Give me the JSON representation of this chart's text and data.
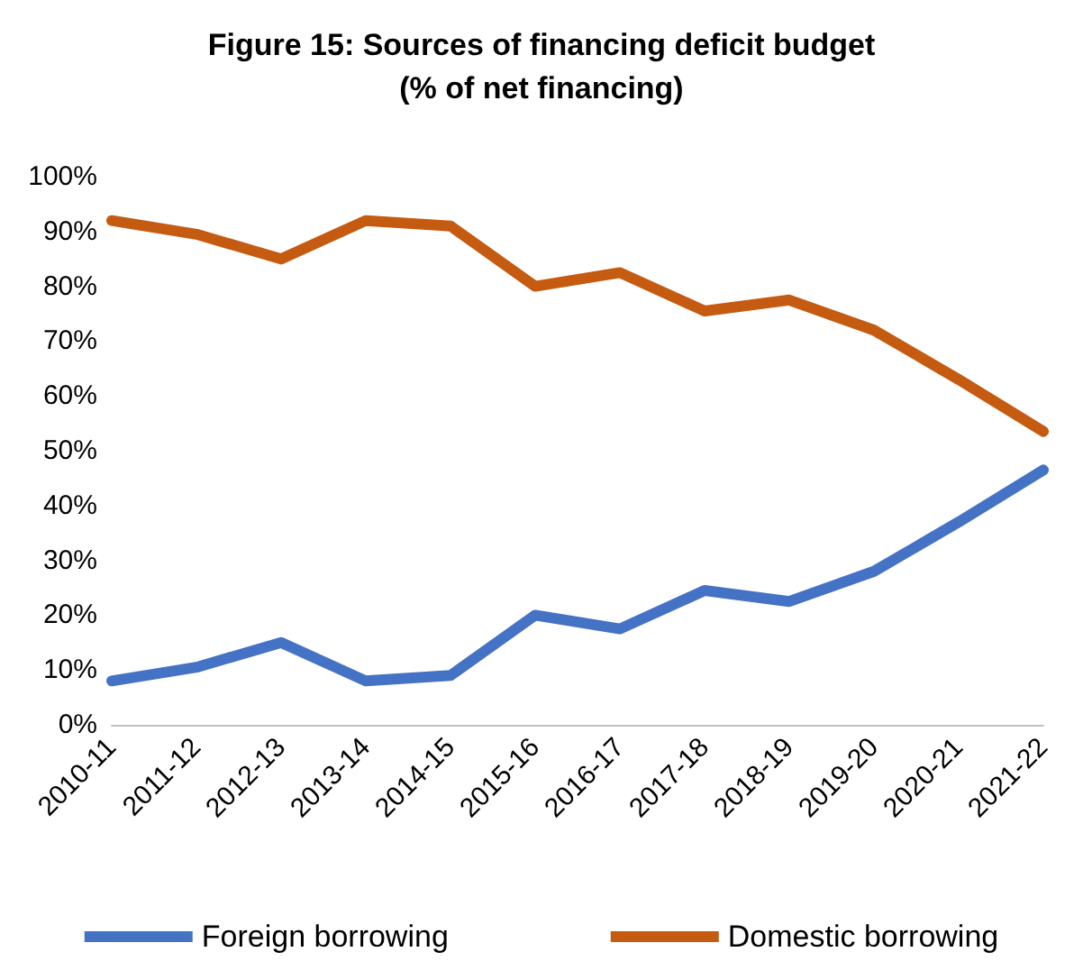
{
  "chart_data": {
    "type": "line",
    "title": "Figure 15: Sources of financing deficit budget\n(% of net financing)",
    "categories": [
      "2010-11",
      "2011-12",
      "2012-13",
      "2013-14",
      "2014-15",
      "2015-16",
      "2016-17",
      "2017-18",
      "2018-19",
      "2019-20",
      "2020-21",
      "2021-22"
    ],
    "series": [
      {
        "name": "Foreign borrowing",
        "color": "#4472c4",
        "values": [
          8,
          10.5,
          15,
          8,
          9,
          20,
          17.5,
          24.5,
          22.5,
          28,
          37,
          46.5
        ]
      },
      {
        "name": "Domestic borrowing",
        "color": "#c55a11",
        "values": [
          92,
          89.5,
          85,
          92,
          91,
          80,
          82.5,
          75.5,
          77.5,
          72,
          63,
          53.5
        ]
      }
    ],
    "ylim": [
      0,
      100
    ],
    "yticks": [
      {
        "value": 0,
        "label": "0%"
      },
      {
        "value": 10,
        "label": "10%"
      },
      {
        "value": 20,
        "label": "20%"
      },
      {
        "value": 30,
        "label": "30%"
      },
      {
        "value": 40,
        "label": "40%"
      },
      {
        "value": 50,
        "label": "50%"
      },
      {
        "value": 60,
        "label": "60%"
      },
      {
        "value": 70,
        "label": "70%"
      },
      {
        "value": 80,
        "label": "80%"
      },
      {
        "value": 90,
        "label": "90%"
      },
      {
        "value": 100,
        "label": "100%"
      }
    ],
    "grid": false,
    "legend": "bottom",
    "marker": "none",
    "line_style": "solid"
  }
}
